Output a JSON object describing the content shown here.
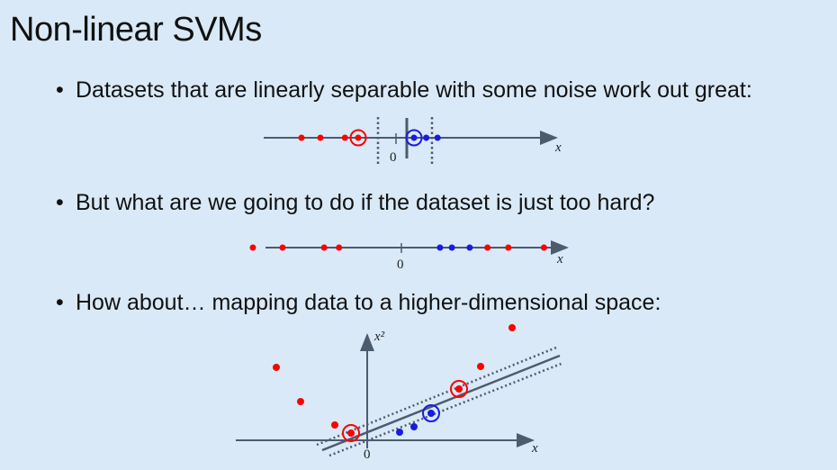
{
  "slide": {
    "title": "Non-linear SVMs",
    "bullets": [
      "Datasets that are linearly separable with some noise work out great:",
      "But what are we going to do if the dataset is just too hard?",
      "How about… mapping data to a higher-dimensional space:"
    ],
    "bullet_symbol": "•"
  },
  "diagram1": {
    "axis_label": "x",
    "origin_label": "0",
    "red_points": [
      -5,
      -4,
      -2.7
    ],
    "red_support_vector": -2,
    "blue_support_vector": 1,
    "blue_points": [
      1.6,
      2.2
    ],
    "separator": 0
  },
  "diagram2": {
    "axis_label": "x",
    "origin_label": "0",
    "red_points": [
      -5,
      -4,
      -2.6,
      -2.1,
      2.9,
      3.6,
      4.8
    ],
    "blue_points": [
      1.3,
      1.7,
      2.3
    ]
  },
  "diagram3": {
    "x_axis_label": "x",
    "y_axis_label": "x²",
    "origin_label": "0"
  },
  "colors": {
    "red": "#ff0000",
    "blue": "#1a1ae6",
    "axis": "#4d5b6e",
    "background": "#d9e9f7"
  }
}
